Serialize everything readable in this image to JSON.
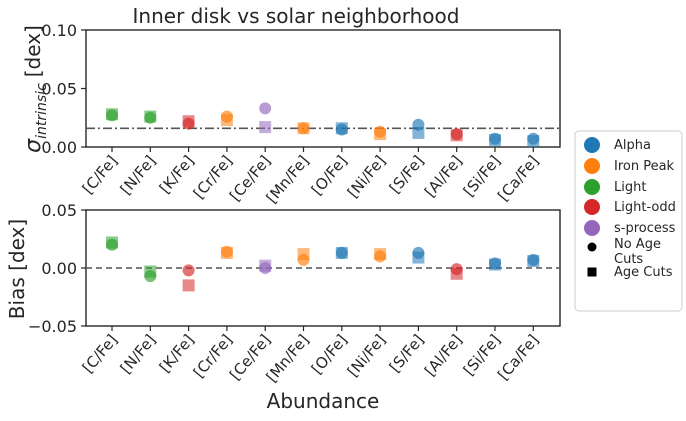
{
  "chart_data": [
    {
      "type": "scatter",
      "title": "Inner disk vs solar neighborhood",
      "ylabel_main": "σ",
      "ylabel_sub": "intrinsic",
      "ylabel_unit": "[dex]",
      "xlabel": "",
      "ylim": [
        0,
        0.1
      ],
      "yticks": [
        0.0,
        0.05,
        0.1
      ],
      "ytick_labels": [
        "0.00",
        "0.05",
        "0.10"
      ],
      "categories": [
        "[C/Fe]",
        "[N/Fe]",
        "[K/Fe]",
        "[Cr/Fe]",
        "[Ce/Fe]",
        "[Mn/Fe]",
        "[O/Fe]",
        "[Ni/Fe]",
        "[S/Fe]",
        "[Al/Fe]",
        "[Si/Fe]",
        "[Ca/Fe]"
      ],
      "groups": [
        "Light",
        "Light",
        "Light-odd",
        "Iron Peak",
        "s-process",
        "Iron Peak",
        "Alpha",
        "Iron Peak",
        "Alpha",
        "Light-odd",
        "Alpha",
        "Alpha"
      ],
      "series": [
        {
          "name": "No Age Cuts",
          "marker": "circle",
          "values": [
            0.027,
            0.025,
            0.02,
            0.026,
            0.033,
            0.016,
            0.015,
            0.013,
            0.019,
            0.011,
            0.007,
            0.007
          ]
        },
        {
          "name": "Age Cuts",
          "marker": "square",
          "values": [
            0.028,
            0.026,
            0.022,
            0.023,
            0.017,
            0.016,
            0.016,
            0.011,
            0.012,
            0.01,
            0.006,
            0.005
          ]
        }
      ],
      "reference_line": {
        "y": 0.016,
        "style": "dashdot"
      }
    },
    {
      "type": "scatter",
      "title": "",
      "ylabel": "Bias [dex]",
      "xlabel": "Abundance",
      "ylim": [
        -0.05,
        0.05
      ],
      "yticks": [
        -0.05,
        0.0,
        0.05
      ],
      "ytick_labels": [
        "−0.05",
        "0.00",
        "0.05"
      ],
      "categories": [
        "[C/Fe]",
        "[N/Fe]",
        "[K/Fe]",
        "[Cr/Fe]",
        "[Ce/Fe]",
        "[Mn/Fe]",
        "[O/Fe]",
        "[Ni/Fe]",
        "[S/Fe]",
        "[Al/Fe]",
        "[Si/Fe]",
        "[Ca/Fe]"
      ],
      "groups": [
        "Light",
        "Light",
        "Light-odd",
        "Iron Peak",
        "s-process",
        "Iron Peak",
        "Alpha",
        "Iron Peak",
        "Alpha",
        "Light-odd",
        "Alpha",
        "Alpha"
      ],
      "series": [
        {
          "name": "No Age Cuts",
          "marker": "circle",
          "values": [
            0.02,
            -0.007,
            -0.002,
            0.014,
            0.0,
            0.007,
            0.013,
            0.01,
            0.013,
            -0.001,
            0.004,
            0.007
          ]
        },
        {
          "name": "Age Cuts",
          "marker": "square",
          "values": [
            0.022,
            -0.003,
            -0.015,
            0.013,
            0.002,
            0.012,
            0.013,
            0.012,
            0.009,
            -0.005,
            0.003,
            0.006
          ]
        }
      ],
      "reference_line": {
        "y": 0.0,
        "style": "dashed"
      }
    }
  ],
  "legend": {
    "placement": "right",
    "entries": [
      {
        "label": "Alpha",
        "type": "color",
        "group": "Alpha"
      },
      {
        "label": "Iron Peak",
        "type": "color",
        "group": "Iron Peak"
      },
      {
        "label": "Light",
        "type": "color",
        "group": "Light"
      },
      {
        "label": "Light-odd",
        "type": "color",
        "group": "Light-odd"
      },
      {
        "label": "s-process",
        "type": "color",
        "group": "s-process"
      },
      {
        "label": "No Age Cuts",
        "type": "marker",
        "marker": "circle"
      },
      {
        "label": "Age Cuts",
        "type": "marker",
        "marker": "square"
      }
    ]
  },
  "colors": {
    "Alpha": "#1f77b4",
    "Iron Peak": "#ff7f0e",
    "Light": "#2ca02c",
    "Light-odd": "#d62728",
    "s-process": "#9467bd",
    "axis": "#262626",
    "refline": "#555555"
  }
}
